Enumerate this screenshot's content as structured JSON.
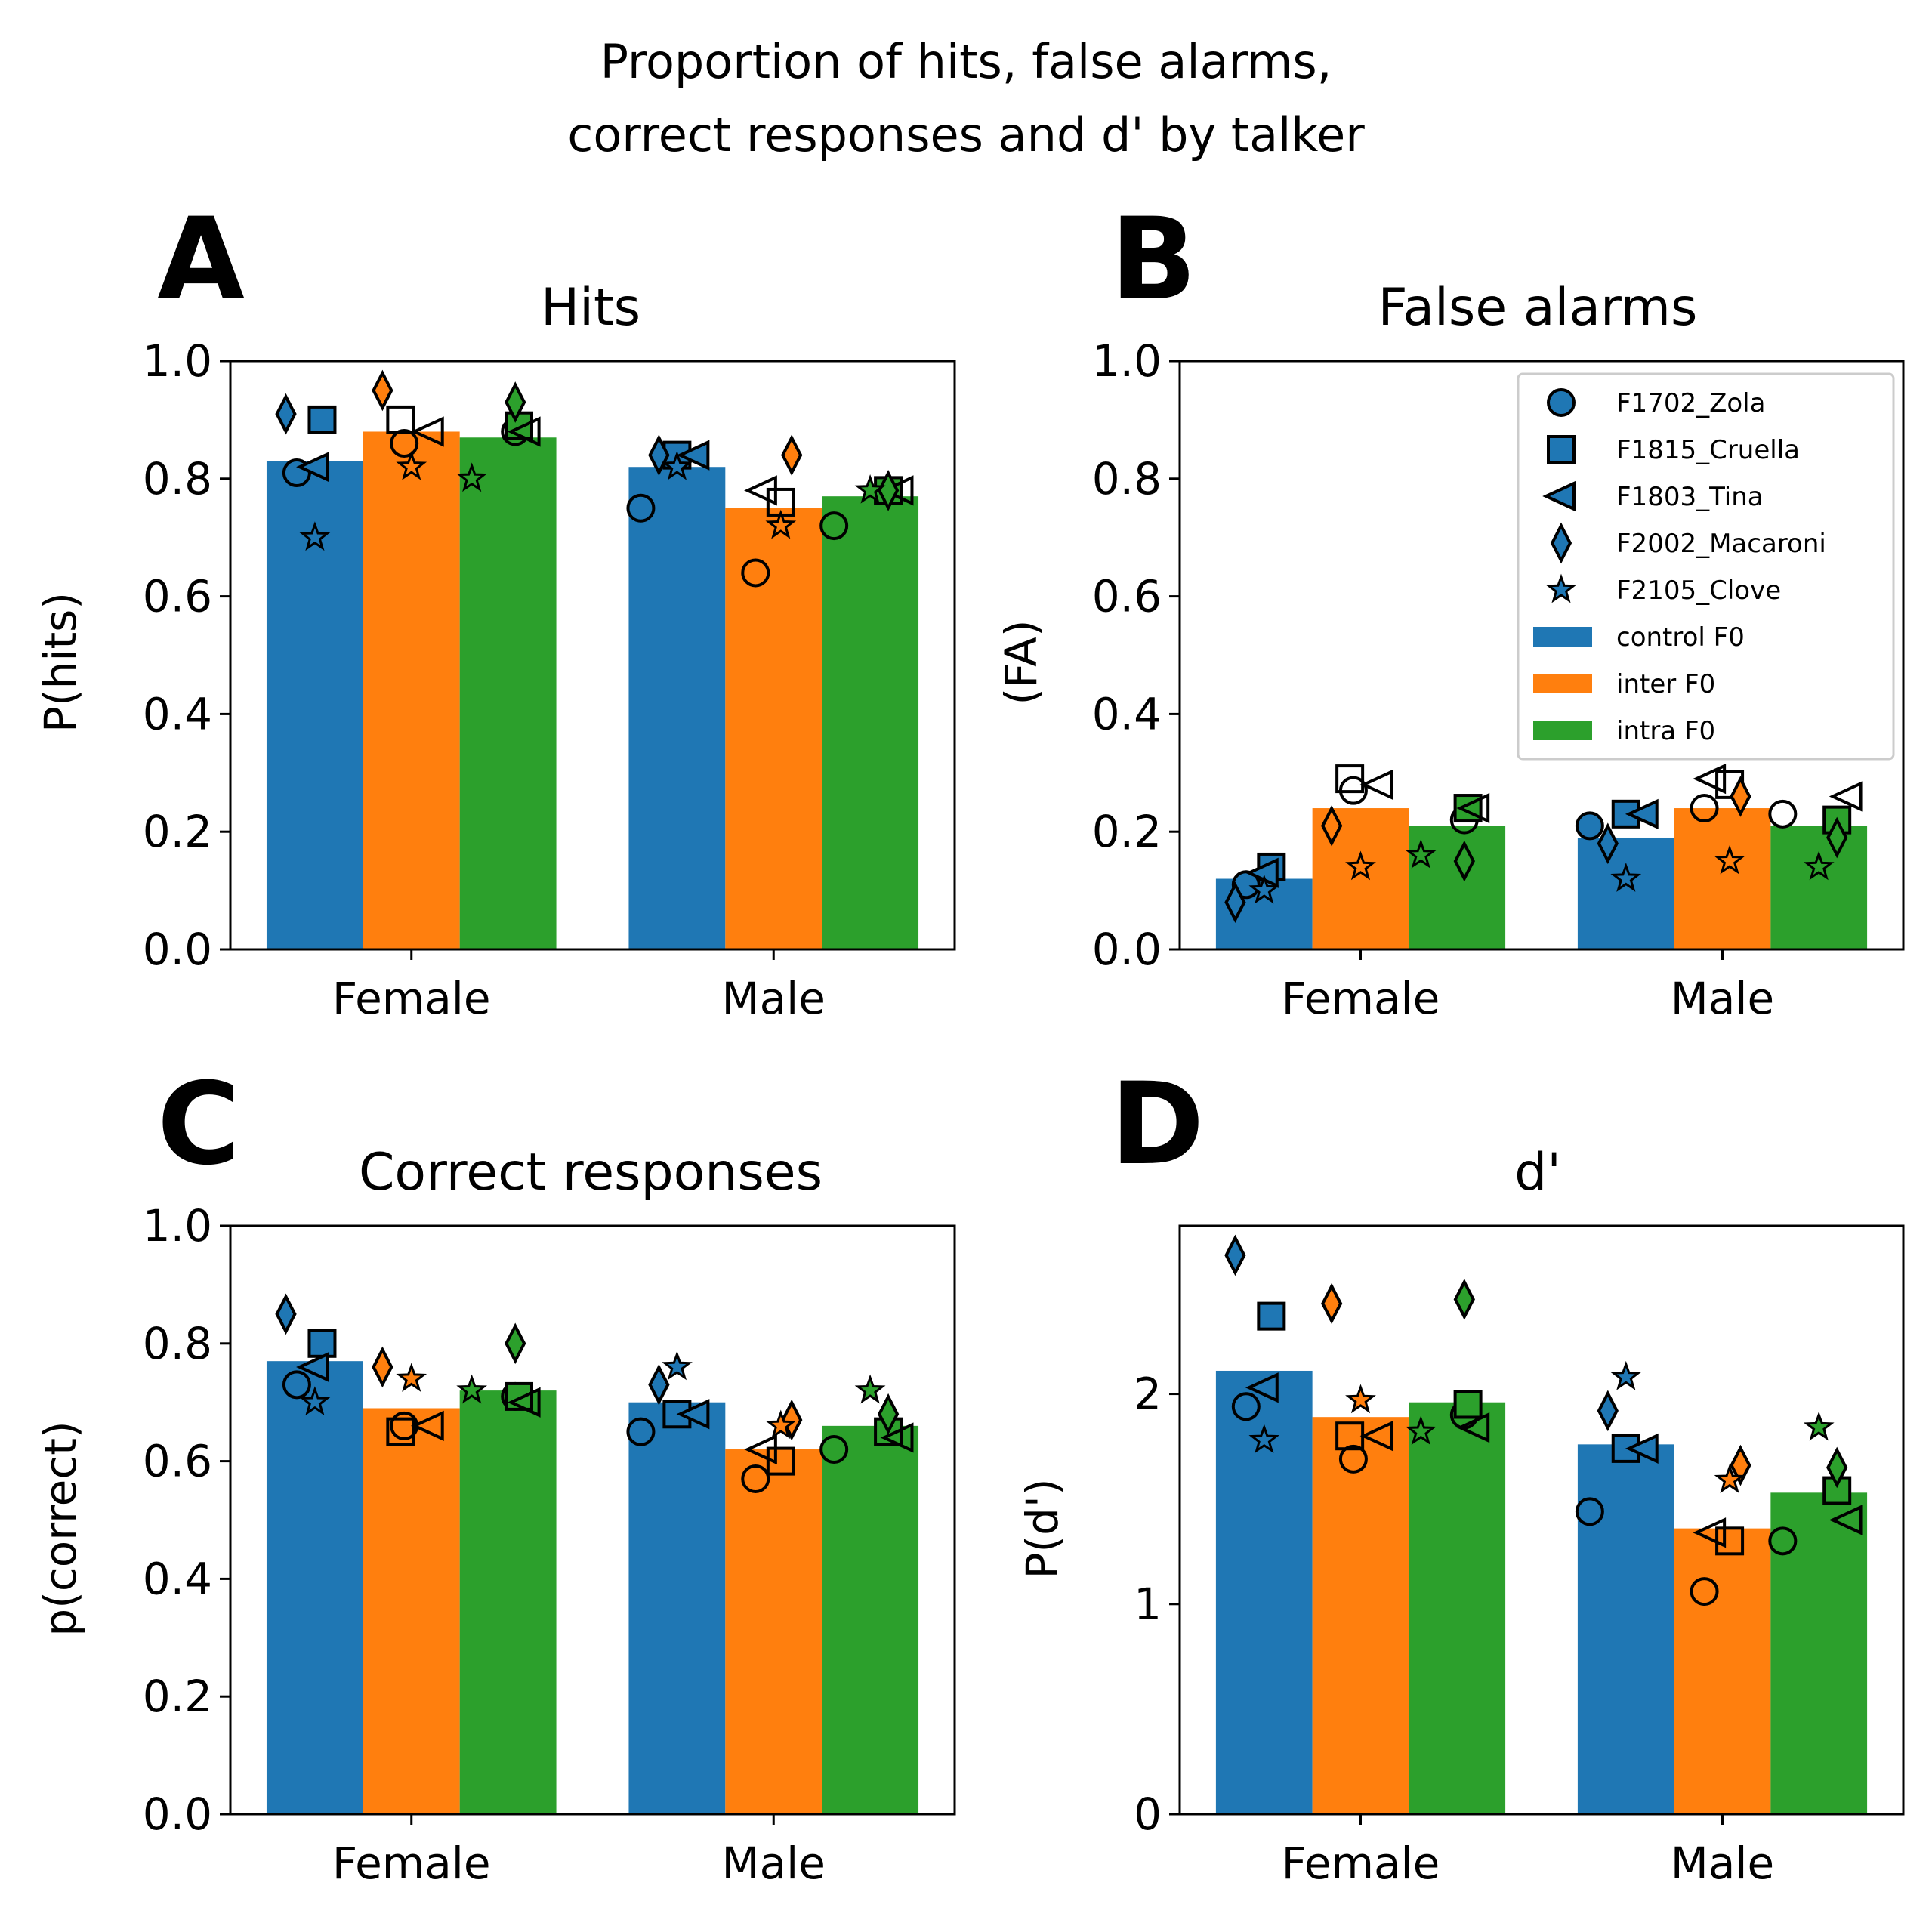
{
  "figure": {
    "title_line1": "Proportion of hits, false alarms,",
    "title_line2": "correct responses and d' by talker"
  },
  "colors": {
    "control F0": "#1f77b4",
    "inter F0": "#ff7f0e",
    "intra F0": "#2ca02c"
  },
  "talkers": [
    {
      "name": "F1702_Zola",
      "marker": "circle"
    },
    {
      "name": "F1815_Cruella",
      "marker": "square"
    },
    {
      "name": "F1803_Tina",
      "marker": "triangle-left"
    },
    {
      "name": "F2002_Macaroni",
      "marker": "thin-diamond"
    },
    {
      "name": "F2105_Clove",
      "marker": "star"
    }
  ],
  "legend": {
    "entries": [
      "F1702_Zola",
      "F1815_Cruella",
      "F1803_Tina",
      "F2002_Macaroni",
      "F2105_Clove",
      "control F0",
      "inter F0",
      "intra F0"
    ],
    "placement": "upper right of panel B"
  },
  "chart_data": [
    {
      "type": "bar",
      "panel": "A",
      "title": "Hits",
      "ylabel": "P(hits)",
      "categories": [
        "Female",
        "Male"
      ],
      "ylim": [
        0,
        1.0
      ],
      "yticks": [
        0,
        0.2,
        0.4,
        0.6,
        0.8,
        1.0
      ],
      "ytick_labels": [
        "0.0",
        "0.2",
        "0.4",
        "0.6",
        "0.8",
        "1.0"
      ],
      "series": [
        {
          "name": "control F0",
          "values": [
            0.83,
            0.82
          ],
          "points": [
            [
              0.81,
              0.9,
              0.82,
              0.91,
              0.7
            ],
            [
              0.75,
              0.84,
              0.84,
              0.84,
              0.82
            ]
          ]
        },
        {
          "name": "inter F0",
          "values": [
            0.88,
            0.75
          ],
          "points": [
            [
              0.86,
              0.9,
              0.88,
              0.95,
              0.82
            ],
            [
              0.64,
              0.76,
              0.78,
              0.84,
              0.72
            ]
          ]
        },
        {
          "name": "intra F0",
          "values": [
            0.87,
            0.77
          ],
          "points": [
            [
              0.88,
              0.89,
              0.88,
              0.93,
              0.8
            ],
            [
              0.72,
              0.78,
              0.78,
              0.78,
              0.78
            ]
          ]
        }
      ]
    },
    {
      "type": "bar",
      "panel": "B",
      "title": "False alarms",
      "ylabel": "(FA)",
      "categories": [
        "Female",
        "Male"
      ],
      "ylim": [
        0,
        1.0
      ],
      "yticks": [
        0,
        0.2,
        0.4,
        0.6,
        0.8,
        1.0
      ],
      "ytick_labels": [
        "0.0",
        "0.2",
        "0.4",
        "0.6",
        "0.8",
        "1.0"
      ],
      "series": [
        {
          "name": "control F0",
          "values": [
            0.12,
            0.19
          ],
          "points": [
            [
              0.11,
              0.14,
              0.13,
              0.08,
              0.1
            ],
            [
              0.21,
              0.23,
              0.23,
              0.18,
              0.12
            ]
          ]
        },
        {
          "name": "inter F0",
          "values": [
            0.24,
            0.24
          ],
          "points": [
            [
              0.27,
              0.29,
              0.28,
              0.21,
              0.14
            ],
            [
              0.24,
              0.28,
              0.29,
              0.26,
              0.15
            ]
          ]
        },
        {
          "name": "intra F0",
          "values": [
            0.21,
            0.21
          ],
          "points": [
            [
              0.22,
              0.24,
              0.24,
              0.15,
              0.16
            ],
            [
              0.23,
              0.22,
              0.26,
              0.19,
              0.14
            ]
          ]
        }
      ]
    },
    {
      "type": "bar",
      "panel": "C",
      "title": "Correct responses",
      "ylabel": "p(correct)",
      "categories": [
        "Female",
        "Male"
      ],
      "ylim": [
        0,
        1.0
      ],
      "yticks": [
        0,
        0.2,
        0.4,
        0.6,
        0.8,
        1.0
      ],
      "ytick_labels": [
        "0.0",
        "0.2",
        "0.4",
        "0.6",
        "0.8",
        "1.0"
      ],
      "series": [
        {
          "name": "control F0",
          "values": [
            0.77,
            0.7
          ],
          "points": [
            [
              0.73,
              0.8,
              0.76,
              0.85,
              0.7
            ],
            [
              0.65,
              0.68,
              0.68,
              0.73,
              0.76
            ]
          ]
        },
        {
          "name": "inter F0",
          "values": [
            0.69,
            0.62
          ],
          "points": [
            [
              0.66,
              0.65,
              0.66,
              0.76,
              0.74
            ],
            [
              0.57,
              0.6,
              0.62,
              0.67,
              0.66
            ]
          ]
        },
        {
          "name": "intra F0",
          "values": [
            0.72,
            0.66
          ],
          "points": [
            [
              0.71,
              0.71,
              0.7,
              0.8,
              0.72
            ],
            [
              0.62,
              0.65,
              0.64,
              0.68,
              0.72
            ]
          ]
        }
      ]
    },
    {
      "type": "bar",
      "panel": "D",
      "title": "d'",
      "ylabel": "P(d')",
      "categories": [
        "Female",
        "Male"
      ],
      "ylim": [
        0,
        2.8
      ],
      "yticks": [
        0,
        1,
        2
      ],
      "ytick_labels": [
        "0",
        "1",
        "2"
      ],
      "series": [
        {
          "name": "control F0",
          "values": [
            2.11,
            1.76
          ],
          "points": [
            [
              1.94,
              2.37,
              2.03,
              2.66,
              1.78
            ],
            [
              1.44,
              1.74,
              1.74,
              1.92,
              2.08
            ]
          ]
        },
        {
          "name": "inter F0",
          "values": [
            1.89,
            1.36
          ],
          "points": [
            [
              1.69,
              1.8,
              1.8,
              2.43,
              1.97
            ],
            [
              1.06,
              1.3,
              1.34,
              1.66,
              1.59
            ]
          ]
        },
        {
          "name": "intra F0",
          "values": [
            1.96,
            1.53
          ],
          "points": [
            [
              1.9,
              1.95,
              1.84,
              2.45,
              1.82
            ],
            [
              1.3,
              1.54,
              1.4,
              1.65,
              1.84
            ]
          ]
        }
      ]
    }
  ]
}
